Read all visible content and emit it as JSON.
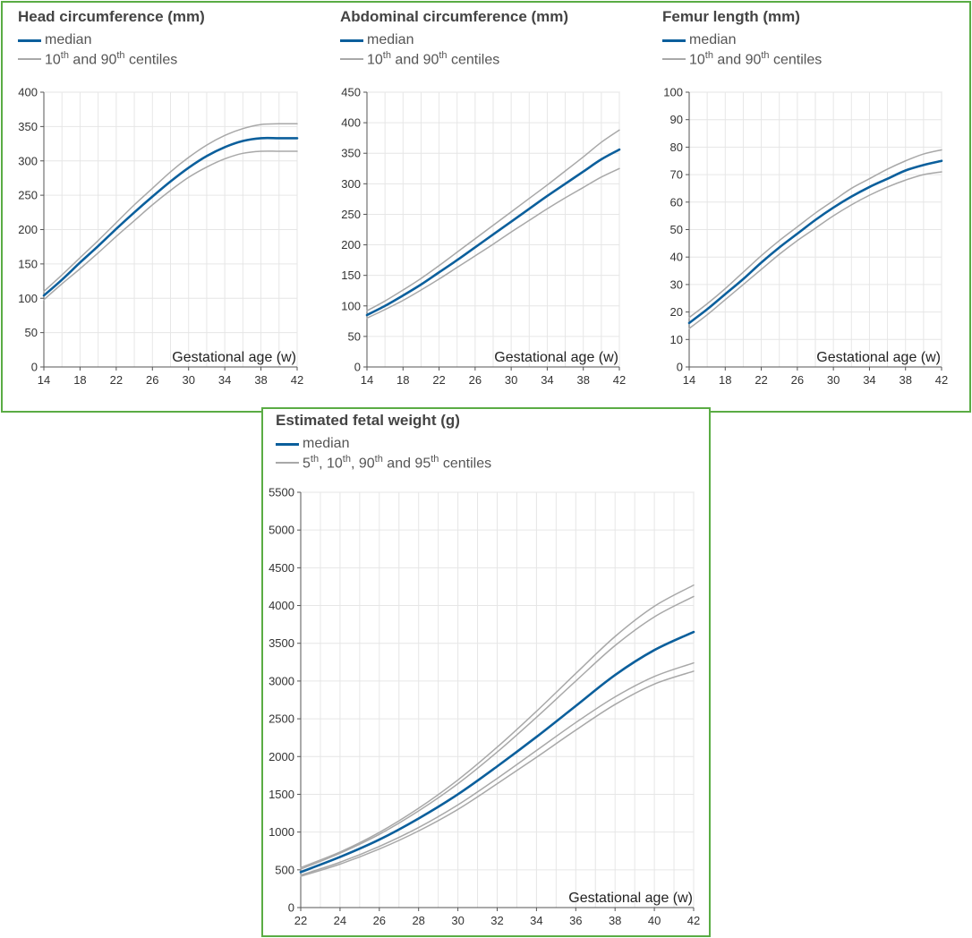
{
  "colors": {
    "median": "#0b5f9c",
    "centile": "#a8a8a8",
    "border": "#5aac44",
    "grid": "#e6e6e6",
    "axis": "#555555"
  },
  "chart_data": [
    {
      "id": "hc",
      "type": "line",
      "title": "Head circumference (mm)",
      "xlabel": "Gestational age (w)",
      "legend": {
        "median": "median",
        "centile_parts": [
          [
            "10",
            "th"
          ],
          [
            " and 90",
            "th"
          ],
          [
            " centiles",
            ""
          ]
        ]
      },
      "xlim": [
        14,
        42
      ],
      "ylim": [
        0,
        400
      ],
      "x_ticks": [
        14,
        18,
        22,
        26,
        30,
        34,
        38,
        42
      ],
      "y_ticks": [
        0,
        50,
        100,
        150,
        200,
        250,
        300,
        350,
        400
      ],
      "x": [
        14,
        16,
        18,
        20,
        22,
        24,
        26,
        28,
        30,
        32,
        34,
        36,
        38,
        40,
        42
      ],
      "series": [
        {
          "name": "10th",
          "role": "centile",
          "values": [
            98,
            121,
            143,
            166,
            190,
            213,
            236,
            257,
            276,
            291,
            303,
            311,
            314,
            314,
            314
          ]
        },
        {
          "name": "median",
          "role": "median",
          "values": [
            104,
            127,
            152,
            176,
            201,
            225,
            248,
            270,
            290,
            307,
            320,
            329,
            333,
            333,
            333
          ]
        },
        {
          "name": "90th",
          "role": "centile",
          "values": [
            110,
            134,
            159,
            184,
            210,
            236,
            260,
            284,
            305,
            323,
            337,
            347,
            353,
            354,
            354
          ]
        }
      ]
    },
    {
      "id": "ac",
      "type": "line",
      "title": "Abdominal circumference (mm)",
      "xlabel": "Gestational age (w)",
      "legend": {
        "median": "median",
        "centile_parts": [
          [
            "10",
            "th"
          ],
          [
            " and 90",
            "th"
          ],
          [
            " centiles",
            ""
          ]
        ]
      },
      "xlim": [
        14,
        42
      ],
      "ylim": [
        0,
        450
      ],
      "x_ticks": [
        14,
        18,
        22,
        26,
        30,
        34,
        38,
        42
      ],
      "y_ticks": [
        0,
        50,
        100,
        150,
        200,
        250,
        300,
        350,
        400,
        450
      ],
      "x": [
        14,
        16,
        18,
        20,
        22,
        24,
        26,
        28,
        30,
        32,
        34,
        36,
        38,
        40,
        42
      ],
      "series": [
        {
          "name": "10th",
          "role": "centile",
          "values": [
            80,
            94,
            109,
            126,
            144,
            163,
            182,
            201,
            221,
            240,
            259,
            277,
            294,
            311,
            325
          ]
        },
        {
          "name": "median",
          "role": "median",
          "values": [
            85,
            100,
            117,
            135,
            155,
            175,
            196,
            217,
            238,
            259,
            280,
            300,
            320,
            340,
            356
          ]
        },
        {
          "name": "90th",
          "role": "centile",
          "values": [
            92,
            108,
            126,
            145,
            166,
            188,
            210,
            232,
            254,
            276,
            298,
            321,
            344,
            368,
            388
          ]
        }
      ]
    },
    {
      "id": "fl",
      "type": "line",
      "title": "Femur length (mm)",
      "xlabel": "Gestational age (w)",
      "legend": {
        "median": "median",
        "centile_parts": [
          [
            "10",
            "th"
          ],
          [
            " and 90",
            "th"
          ],
          [
            " centiles",
            ""
          ]
        ]
      },
      "xlim": [
        14,
        42
      ],
      "ylim": [
        0,
        100
      ],
      "x_ticks": [
        14,
        18,
        22,
        26,
        30,
        34,
        38,
        42
      ],
      "y_ticks": [
        0,
        10,
        20,
        30,
        40,
        50,
        60,
        70,
        80,
        90,
        100
      ],
      "x": [
        14,
        16,
        18,
        20,
        22,
        24,
        26,
        28,
        30,
        32,
        34,
        36,
        38,
        40,
        42
      ],
      "series": [
        {
          "name": "10th",
          "role": "centile",
          "values": [
            14,
            19,
            24.5,
            30,
            35.5,
            41,
            46,
            50.5,
            55,
            59,
            62.5,
            65.5,
            68,
            70,
            71
          ]
        },
        {
          "name": "median",
          "role": "median",
          "values": [
            16,
            21,
            26.5,
            32,
            38,
            43.5,
            48.5,
            53.5,
            58,
            62,
            65.5,
            68.5,
            71.5,
            73.5,
            75
          ]
        },
        {
          "name": "90th",
          "role": "centile",
          "values": [
            18,
            23,
            28.5,
            34.5,
            40.5,
            46,
            51,
            56,
            60.5,
            65,
            68.5,
            72,
            75,
            77.5,
            79
          ]
        }
      ]
    },
    {
      "id": "efw",
      "type": "line",
      "title": "Estimated fetal weight (g)",
      "xlabel": "Gestational age (w)",
      "legend": {
        "median": "median",
        "centile_parts": [
          [
            "5",
            "th"
          ],
          [
            ", 10",
            "th"
          ],
          [
            ", 90",
            "th"
          ],
          [
            " and 95",
            "th"
          ],
          [
            " centiles",
            ""
          ]
        ]
      },
      "xlim": [
        22,
        42
      ],
      "ylim": [
        0,
        5500
      ],
      "x_ticks": [
        22,
        24,
        26,
        28,
        30,
        32,
        34,
        36,
        38,
        40,
        42
      ],
      "y_ticks": [
        0,
        500,
        1000,
        1500,
        2000,
        2500,
        3000,
        3500,
        4000,
        4500,
        5000,
        5500
      ],
      "x": [
        22,
        24,
        26,
        28,
        30,
        32,
        34,
        36,
        38,
        40,
        42
      ],
      "series": [
        {
          "name": "5th",
          "role": "centile",
          "values": [
            415,
            575,
            775,
            1015,
            1300,
            1640,
            1990,
            2350,
            2690,
            2960,
            3130
          ]
        },
        {
          "name": "10th",
          "role": "centile",
          "values": [
            430,
            600,
            810,
            1060,
            1360,
            1710,
            2080,
            2450,
            2790,
            3060,
            3240
          ]
        },
        {
          "name": "median",
          "role": "median",
          "values": [
            470,
            670,
            900,
            1180,
            1500,
            1870,
            2260,
            2670,
            3080,
            3410,
            3650
          ]
        },
        {
          "name": "90th",
          "role": "centile",
          "values": [
            510,
            720,
            970,
            1280,
            1640,
            2060,
            2520,
            3000,
            3470,
            3850,
            4120
          ]
        },
        {
          "name": "95th",
          "role": "centile",
          "values": [
            530,
            735,
            995,
            1315,
            1690,
            2125,
            2600,
            3100,
            3590,
            3990,
            4270
          ]
        }
      ]
    }
  ]
}
